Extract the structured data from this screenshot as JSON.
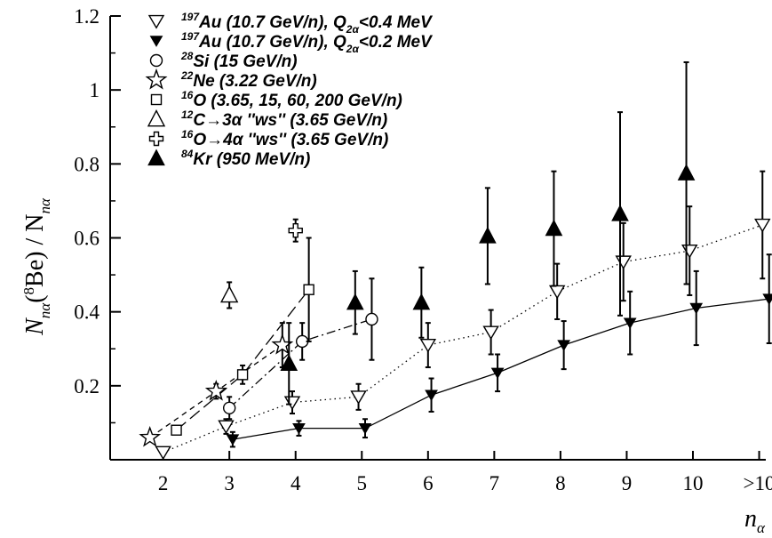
{
  "chart_data": {
    "type": "scatter",
    "xlabel": "n",
    "xlabel_sub": "α",
    "ylabel_parts": [
      "N",
      "nα",
      "(",
      "8",
      "Be) / N",
      "nα"
    ],
    "xlim": [
      1.2,
      11.1
    ],
    "ylim": [
      0,
      1.2
    ],
    "x_ticks": [
      2,
      3,
      4,
      5,
      6,
      7,
      8,
      9,
      10,
      11
    ],
    "x_tick_labels": [
      "2",
      "3",
      "4",
      "5",
      "6",
      "7",
      "8",
      "9",
      "10",
      ">10"
    ],
    "y_ticks": [
      0.2,
      0.4,
      0.6,
      0.8,
      1.0,
      1.2
    ],
    "y_tick_labels": [
      "0.2",
      "0.4",
      "0.6",
      "0.8",
      "1",
      "1.2"
    ],
    "grid": false,
    "legend_position": "top-left",
    "series": [
      {
        "id": "au-q04",
        "legend": {
          "sup": "197",
          "text": "Au (10.7 GeV/n), Q",
          "sub": "2α",
          "tail": "<0.4 MeV"
        },
        "marker": "triangle-down-open",
        "line": "dotted",
        "points": [
          {
            "x": 2.0,
            "y": 0.02,
            "err": 0
          },
          {
            "x": 2.95,
            "y": 0.09,
            "err": 0.02
          },
          {
            "x": 3.95,
            "y": 0.155,
            "err": 0.03
          },
          {
            "x": 4.95,
            "y": 0.17,
            "err": 0.035
          },
          {
            "x": 6.0,
            "y": 0.31,
            "err": 0.06
          },
          {
            "x": 6.95,
            "y": 0.345,
            "err": 0.06
          },
          {
            "x": 7.95,
            "y": 0.455,
            "err": 0.075
          },
          {
            "x": 8.95,
            "y": 0.535,
            "err": 0.105
          },
          {
            "x": 9.95,
            "y": 0.565,
            "err": 0.12
          },
          {
            "x": 11.05,
            "y": 0.635,
            "err": 0.145
          }
        ]
      },
      {
        "id": "au-q02",
        "legend": {
          "sup": "197",
          "text": "Au (10.7 GeV/n), Q",
          "sub": "2α",
          "tail": "<0.2 MeV"
        },
        "marker": "triangle-down-filled",
        "line": "solid",
        "points": [
          {
            "x": 3.05,
            "y": 0.055,
            "err": 0.02
          },
          {
            "x": 4.05,
            "y": 0.085,
            "err": 0.02
          },
          {
            "x": 5.05,
            "y": 0.085,
            "err": 0.025
          },
          {
            "x": 6.05,
            "y": 0.175,
            "err": 0.045
          },
          {
            "x": 7.05,
            "y": 0.235,
            "err": 0.05
          },
          {
            "x": 8.05,
            "y": 0.31,
            "err": 0.065
          },
          {
            "x": 9.05,
            "y": 0.37,
            "err": 0.085
          },
          {
            "x": 10.05,
            "y": 0.41,
            "err": 0.1
          },
          {
            "x": 11.15,
            "y": 0.435,
            "err": 0.12
          }
        ]
      },
      {
        "id": "si",
        "legend": {
          "sup": "28",
          "text": "Si (15 GeV/n)",
          "sub": "",
          "tail": ""
        },
        "marker": "circle-open",
        "line": "dash-dot",
        "points": [
          {
            "x": 3.0,
            "y": 0.14,
            "err": 0.03
          },
          {
            "x": 4.1,
            "y": 0.32,
            "err": 0.05
          },
          {
            "x": 5.15,
            "y": 0.38,
            "err": 0.11
          }
        ]
      },
      {
        "id": "ne",
        "legend": {
          "sup": "22",
          "text": "Ne (3.22 GeV/n)",
          "sub": "",
          "tail": ""
        },
        "marker": "star-open",
        "line": "dashed",
        "points": [
          {
            "x": 1.8,
            "y": 0.06,
            "err": 0
          },
          {
            "x": 2.8,
            "y": 0.185,
            "err": 0.02
          },
          {
            "x": 3.8,
            "y": 0.31,
            "err": 0.06
          }
        ]
      },
      {
        "id": "o",
        "legend": {
          "sup": "16",
          "text": "O (3.65, 15, 60, 200 GeV/n)",
          "sub": "",
          "tail": ""
        },
        "marker": "square-open",
        "line": "long-dash",
        "points": [
          {
            "x": 2.2,
            "y": 0.08,
            "err": 0
          },
          {
            "x": 3.2,
            "y": 0.23,
            "err": 0.025
          },
          {
            "x": 4.2,
            "y": 0.46,
            "err": 0.14
          }
        ]
      },
      {
        "id": "c-3a",
        "legend": {
          "sup": "12",
          "text": "C→3α ''ws'' (3.65 GeV/n)",
          "sub": "",
          "tail": ""
        },
        "marker": "triangle-up-open",
        "line": "none",
        "points": [
          {
            "x": 3.0,
            "y": 0.445,
            "err": 0.035
          }
        ]
      },
      {
        "id": "o-4a",
        "legend": {
          "sup": "16",
          "text": "O→4α ''ws'' (3.65 GeV/n)",
          "sub": "",
          "tail": ""
        },
        "marker": "cross-open",
        "line": "none",
        "points": [
          {
            "x": 4.0,
            "y": 0.62,
            "err": 0.03
          }
        ]
      },
      {
        "id": "kr",
        "legend": {
          "sup": "84",
          "text": "Kr (950 MeV/n)",
          "sub": "",
          "tail": ""
        },
        "marker": "triangle-up-filled",
        "line": "none",
        "points": [
          {
            "x": 3.9,
            "y": 0.26,
            "err": 0.11
          },
          {
            "x": 4.9,
            "y": 0.425,
            "err": 0.085
          },
          {
            "x": 5.9,
            "y": 0.425,
            "err": 0.095
          },
          {
            "x": 6.9,
            "y": 0.605,
            "err": 0.13
          },
          {
            "x": 7.9,
            "y": 0.625,
            "err": 0.155
          },
          {
            "x": 8.9,
            "y": 0.665,
            "err": 0.275
          },
          {
            "x": 9.9,
            "y": 0.775,
            "err": 0.3
          }
        ]
      }
    ]
  }
}
